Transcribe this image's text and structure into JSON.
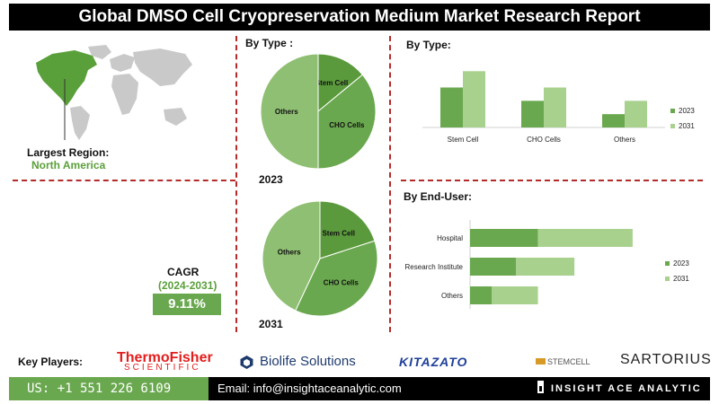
{
  "title": "Global DMSO Cell Cryopreservation Medium Market Research Report",
  "region": {
    "label": "Largest Region:",
    "value": "North America"
  },
  "cagr": {
    "label": "CAGR",
    "years": "(2024-2031)",
    "value": "9.11%"
  },
  "pie_section_title": "By Type :",
  "bar1_title": "By  Type:",
  "bar2_title": "By End-User:",
  "key_players": {
    "label": "Key Players:",
    "logos": [
      "ThermoFisher",
      "SCIENTIFIC",
      "Biolife Solutions",
      "KITAZATO",
      "STEMCELL",
      "SARTORIUS"
    ]
  },
  "footer": {
    "phone": "US: +1 551 226 6109",
    "email": "Email: info@insightaceanalytic.com",
    "brand": "INSIGHT ACE ANALYTIC"
  },
  "colors": {
    "dark_green": "#5b9a3c",
    "light_green": "#a9d18e",
    "mid_green": "#6aa84f",
    "divider_red": "#b52a2a"
  },
  "chart_data": [
    {
      "type": "pie",
      "year_label": "2023",
      "labels": [
        "Stem Cell",
        "CHO Cells",
        "Others"
      ],
      "values": [
        14,
        36,
        50
      ],
      "colors": [
        "#5b9a3c",
        "#6aa84f",
        "#8fbf72"
      ]
    },
    {
      "type": "pie",
      "year_label": "2031",
      "labels": [
        "Stem Cell",
        "CHO Cells",
        "Others"
      ],
      "values": [
        20,
        37,
        43
      ],
      "colors": [
        "#5b9a3c",
        "#6aa84f",
        "#8fbf72"
      ]
    },
    {
      "type": "bar",
      "categories": [
        "Stem Cell",
        "CHO Cells",
        "Others"
      ],
      "series": [
        {
          "name": "2023",
          "values": [
            27,
            18,
            9
          ],
          "color": "#6aa84f"
        },
        {
          "name": "2031",
          "values": [
            38,
            27,
            18
          ],
          "color": "#a9d18e"
        }
      ],
      "ylim": [
        0,
        40
      ]
    },
    {
      "type": "bar",
      "orientation": "horizontal",
      "categories": [
        "Hospital",
        "Research Institute",
        "Others"
      ],
      "series": [
        {
          "name": "2023",
          "values": [
            28,
            19,
            9
          ],
          "color": "#6aa84f"
        },
        {
          "name": "2031",
          "values": [
            39,
            24,
            19
          ],
          "color": "#a9d18e"
        }
      ],
      "stacked": true,
      "xlim": [
        0,
        100
      ]
    }
  ]
}
